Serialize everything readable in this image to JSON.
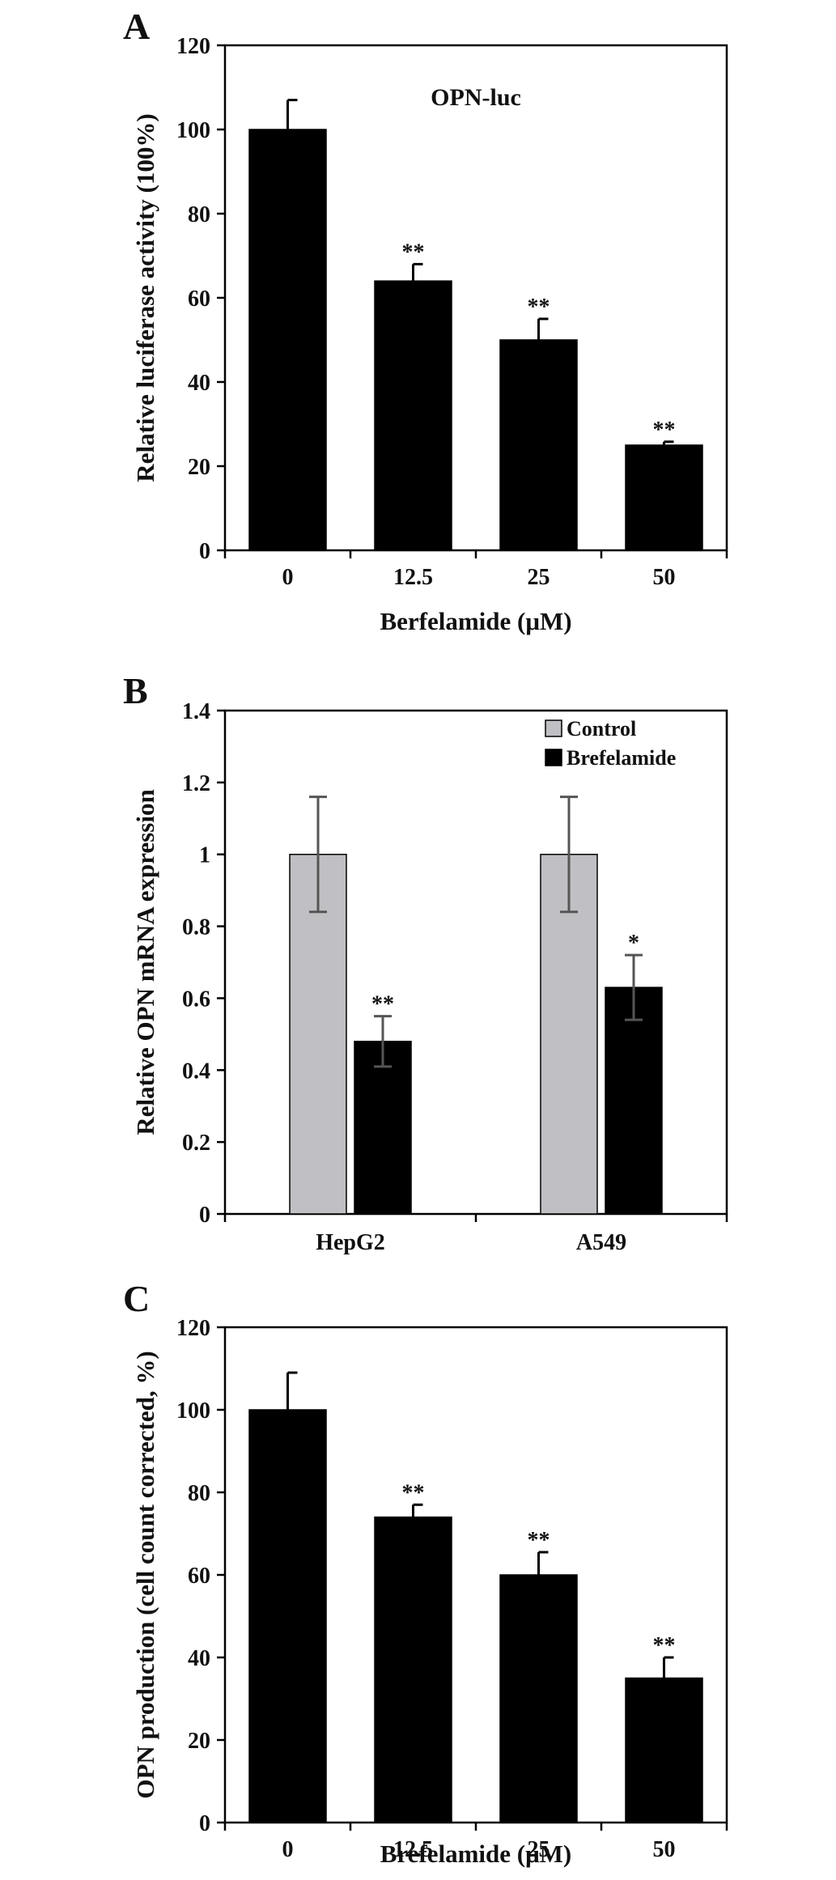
{
  "chart_data": [
    {
      "type": "bar",
      "panel_label": "A",
      "annotation": "OPN-luc",
      "categories": [
        "0",
        "12.5",
        "25",
        "50"
      ],
      "values": [
        100,
        64,
        50,
        25
      ],
      "errors": [
        7,
        4,
        5,
        0.8
      ],
      "significance": [
        "",
        "**",
        "**",
        "**"
      ],
      "xlabel": "Berfelamide (μM)",
      "ylabel": "Relative luciferase activity (100%)",
      "ylim": [
        0,
        120
      ],
      "yticks": [
        "0",
        "20",
        "40",
        "60",
        "80",
        "100",
        "120"
      ],
      "bar_color": "#000000"
    },
    {
      "type": "bar",
      "panel_label": "B",
      "categories": [
        "HepG2",
        "A549"
      ],
      "series": [
        {
          "name": "Control",
          "values": [
            1,
            1
          ],
          "errors": [
            0.16,
            0.16
          ],
          "significance": [
            "",
            ""
          ],
          "color": "#c0c0c4"
        },
        {
          "name": "Brefelamide",
          "values": [
            0.48,
            0.63
          ],
          "errors": [
            0.07,
            0.09
          ],
          "significance": [
            "**",
            "*"
          ],
          "color": "#000000"
        }
      ],
      "xlabel": "",
      "ylabel": "Relative OPN mRNA expression",
      "ylim": [
        0,
        1.4
      ],
      "yticks": [
        "0",
        "0.2",
        "0.4",
        "0.6",
        "0.8",
        "1",
        "1.2",
        "1.4"
      ],
      "legend_position": "top-right",
      "error_color": "#555555"
    },
    {
      "type": "bar",
      "panel_label": "C",
      "categories": [
        "0",
        "12.5",
        "25",
        "50"
      ],
      "values": [
        100,
        74,
        60,
        35
      ],
      "errors": [
        9,
        3,
        5.5,
        5
      ],
      "significance": [
        "",
        "**",
        "**",
        "**"
      ],
      "xlabel": "Brefelamide (μM)",
      "ylabel": "OPN production (cell count corrected, %)",
      "ylim": [
        0,
        120
      ],
      "yticks": [
        "0",
        "20",
        "40",
        "60",
        "80",
        "100",
        "120"
      ],
      "bar_color": "#000000"
    }
  ]
}
